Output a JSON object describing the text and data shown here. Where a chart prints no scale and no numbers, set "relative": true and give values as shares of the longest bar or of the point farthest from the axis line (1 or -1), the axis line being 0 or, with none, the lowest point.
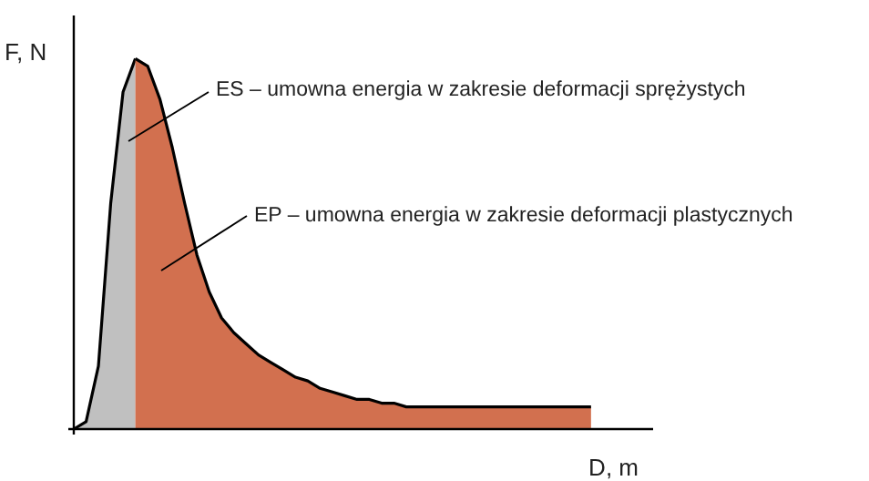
{
  "chart_data": {
    "type": "area",
    "relative": true,
    "xlabel": "D, m",
    "ylabel": "F, N",
    "categories": [
      null,
      null,
      null,
      null,
      null,
      null,
      null,
      null,
      null,
      null,
      null,
      null,
      null,
      null,
      null,
      null,
      null,
      null,
      null,
      null,
      null,
      null,
      null,
      null,
      null,
      null,
      null,
      null,
      null,
      null,
      null,
      null,
      null,
      null,
      null,
      null,
      null,
      null,
      null,
      null,
      null,
      null,
      null
    ],
    "series": [
      {
        "color": "#c0c0c0",
        "values": [
          0,
          0.02,
          0.17,
          0.61,
          0.91,
          1.0,
          null,
          null,
          null,
          null,
          null,
          null,
          null,
          null,
          null,
          null,
          null,
          null,
          null,
          null,
          null,
          null,
          null,
          null,
          null,
          null,
          null,
          null,
          null,
          null,
          null,
          null,
          null,
          null,
          null,
          null,
          null,
          null,
          null,
          null,
          null,
          null,
          null
        ]
      },
      {
        "color": "#d2704f",
        "values": [
          null,
          null,
          null,
          null,
          null,
          1.0,
          0.98,
          0.89,
          0.76,
          0.61,
          0.47,
          0.37,
          0.3,
          0.26,
          0.23,
          0.2,
          0.18,
          0.16,
          0.14,
          0.13,
          0.11,
          0.1,
          0.09,
          0.08,
          0.08,
          0.07,
          0.07,
          0.06,
          0.06,
          0.06,
          0.06,
          0.06,
          0.06,
          0.06,
          0.06,
          0.06,
          0.06,
          0.06,
          0.06,
          0.06,
          0.06,
          0.06,
          0.06
        ]
      }
    ],
    "annotations": [
      "ES – umowna energia w zakresie deformacji sprężystych",
      "EP – umowna energia w zakresie deformacji plastycznych"
    ],
    "grid": false
  }
}
